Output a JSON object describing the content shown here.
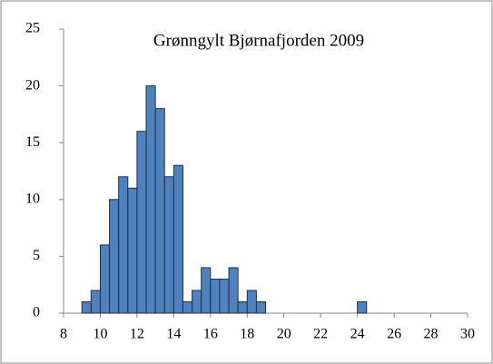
{
  "chart_data": {
    "type": "histogram",
    "title": "Grønngylt Bjørnafjorden 2009",
    "bins": [
      9,
      9.5,
      10,
      10.5,
      11,
      11.5,
      12,
      12.5,
      13,
      13.5,
      14,
      14.5,
      15,
      15.5,
      16,
      16.5,
      17,
      17.5,
      18,
      18.5,
      19,
      19.5,
      20,
      20.5,
      21,
      21.5,
      22,
      22.5,
      23,
      23.5,
      24,
      24.5
    ],
    "counts": [
      1,
      2,
      6,
      10,
      12,
      11,
      16,
      20,
      18,
      12,
      13,
      1,
      2,
      4,
      3,
      3,
      4,
      1,
      2,
      1,
      0,
      0,
      0,
      0,
      0,
      0,
      0,
      0,
      0,
      0,
      1
    ],
    "color": "#4f81bd",
    "xlim": [
      8,
      30
    ],
    "xticks": [
      8,
      10,
      12,
      14,
      16,
      18,
      20,
      22,
      24,
      26,
      28,
      30
    ],
    "ylim": [
      0,
      25
    ],
    "yticks": [
      0,
      5,
      10,
      15,
      20,
      25
    ],
    "grid": false
  }
}
